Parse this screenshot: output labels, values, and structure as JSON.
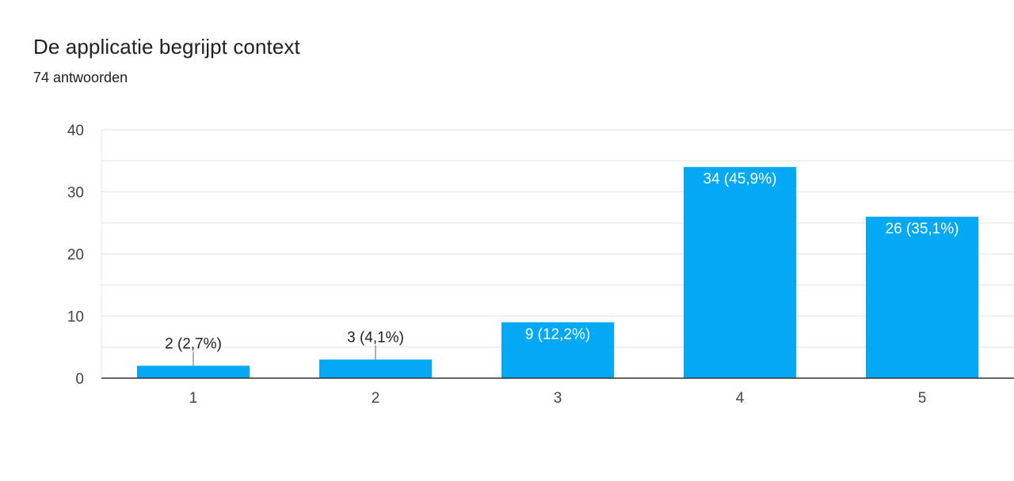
{
  "header": {
    "title": "De applicatie begrijpt context",
    "subtitle": "74 antwoorden"
  },
  "colors": {
    "bar": "#03a9f4",
    "gridline": "#e8e8e8",
    "axis": "#333333",
    "label_inside": "#ffffff",
    "label_outside": "#222222"
  },
  "chart_data": {
    "type": "bar",
    "title": "De applicatie begrijpt context",
    "subtitle": "74 antwoorden",
    "xlabel": "",
    "ylabel": "",
    "categories": [
      "1",
      "2",
      "3",
      "4",
      "5"
    ],
    "values": [
      2,
      3,
      9,
      34,
      26
    ],
    "data_labels": [
      "2 (2,7%)",
      "3 (4,1%)",
      "9 (12,2%)",
      "34 (45,9%)",
      "26 (35,1%)"
    ],
    "ylim": [
      0,
      40
    ],
    "yticks": [
      0,
      10,
      20,
      30,
      40
    ],
    "minor_grid_step": 5,
    "grid": true,
    "legend": "none"
  }
}
